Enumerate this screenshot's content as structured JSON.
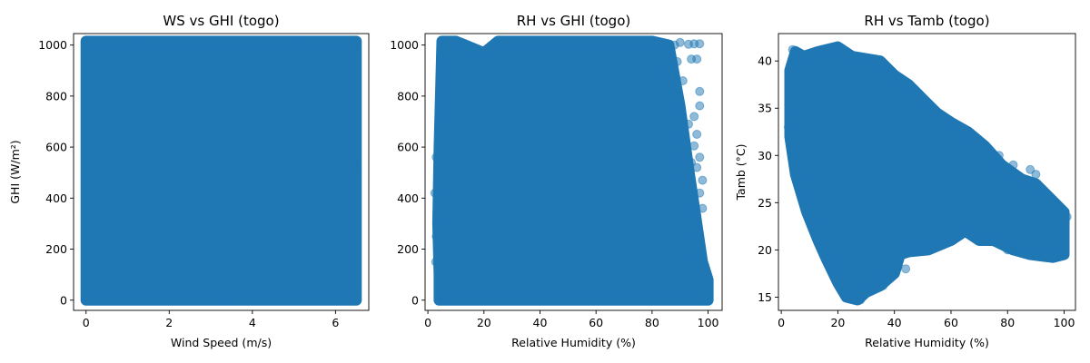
{
  "chart_data": [
    {
      "type": "scatter",
      "title": "WS vs GHI (togo)",
      "xlabel": "Wind Speed (m/s)",
      "ylabel": "GHI (W/m²)",
      "xlim": [
        -0.3,
        6.8
      ],
      "ylim": [
        -40,
        1045
      ],
      "xticks": [
        0,
        2,
        4,
        6
      ],
      "yticks": [
        0,
        200,
        400,
        600,
        800,
        1000
      ],
      "point_color": "#1f77b4",
      "point_alpha": 0.5,
      "dense_regions": [
        {
          "polygon": [
            [
              0,
              0
            ],
            [
              6.5,
              0
            ],
            [
              6.5,
              1015
            ],
            [
              0,
              1015
            ]
          ]
        }
      ],
      "points": [
        [
          0,
          1015
        ],
        [
          1.2,
          1012
        ],
        [
          2.5,
          1015
        ],
        [
          3.6,
          1013
        ],
        [
          5.1,
          1014
        ],
        [
          6.5,
          1015
        ],
        [
          6.5,
          0
        ],
        [
          0,
          0
        ],
        [
          3.2,
          0
        ],
        [
          6.5,
          520
        ],
        [
          0,
          480
        ]
      ]
    },
    {
      "type": "scatter",
      "title": "RH vs GHI (togo)",
      "xlabel": "Relative Humidity (%)",
      "ylabel": "",
      "xlim": [
        -1,
        105
      ],
      "ylim": [
        -40,
        1045
      ],
      "xticks": [
        0,
        20,
        40,
        60,
        80,
        100
      ],
      "yticks": [
        0,
        200,
        400,
        600,
        800,
        1000
      ],
      "point_color": "#1f77b4",
      "point_alpha": 0.5,
      "dense_regions": [
        {
          "polygon": [
            [
              4,
              0
            ],
            [
              100,
              0
            ],
            [
              100,
              80
            ],
            [
              98,
              150
            ],
            [
              96,
              300
            ],
            [
              93,
              520
            ],
            [
              90,
              760
            ],
            [
              86,
              1000
            ],
            [
              80,
              1015
            ],
            [
              25,
              1015
            ],
            [
              20,
              970
            ],
            [
              10,
              1015
            ],
            [
              5,
              1015
            ],
            [
              4,
              600
            ],
            [
              3.5,
              300
            ],
            [
              4,
              100
            ]
          ]
        }
      ],
      "points": [
        [
          97,
          1005
        ],
        [
          95,
          1005
        ],
        [
          93,
          1003
        ],
        [
          90,
          1010
        ],
        [
          88,
          1000
        ],
        [
          96,
          945
        ],
        [
          94,
          945
        ],
        [
          89,
          935
        ],
        [
          87,
          880
        ],
        [
          97,
          818
        ],
        [
          97,
          762
        ],
        [
          95,
          720
        ],
        [
          93,
          690
        ],
        [
          96,
          650
        ],
        [
          95,
          605
        ],
        [
          97,
          560
        ],
        [
          96,
          520
        ],
        [
          98,
          470
        ],
        [
          97,
          420
        ],
        [
          98,
          360
        ],
        [
          96,
          330
        ],
        [
          91,
          860
        ],
        [
          89,
          800
        ],
        [
          92,
          620
        ],
        [
          94,
          540
        ],
        [
          90,
          480
        ],
        [
          3,
          560
        ],
        [
          2.5,
          420
        ],
        [
          3,
          250
        ],
        [
          2.8,
          150
        ],
        [
          5,
          20
        ],
        [
          6,
          5
        ]
      ]
    },
    {
      "type": "scatter",
      "title": "RH vs Tamb (togo)",
      "xlabel": "Relative Humidity (%)",
      "ylabel": "Tamb (°C)",
      "xlim": [
        -1,
        104
      ],
      "ylim": [
        13.6,
        42.9
      ],
      "xticks": [
        0,
        20,
        40,
        60,
        80,
        100
      ],
      "yticks": [
        15,
        20,
        25,
        30,
        35,
        40
      ],
      "point_color": "#1f77b4",
      "point_alpha": 0.5,
      "dense_regions": [
        {
          "polygon": [
            [
              3,
              39
            ],
            [
              5,
              41
            ],
            [
              8,
              40.5
            ],
            [
              13,
              41
            ],
            [
              20,
              41.5
            ],
            [
              25,
              40.5
            ],
            [
              35,
              40
            ],
            [
              40,
              38.5
            ],
            [
              45,
              37.5
            ],
            [
              50,
              36
            ],
            [
              55,
              34.5
            ],
            [
              60,
              33.5
            ],
            [
              66,
              32.5
            ],
            [
              72,
              31
            ],
            [
              78,
              29
            ],
            [
              85,
              27.5
            ],
            [
              90,
              27
            ],
            [
              95,
              25.5
            ],
            [
              100,
              24
            ],
            [
              100,
              19.5
            ],
            [
              96,
              19.2
            ],
            [
              88,
              19.5
            ],
            [
              82,
              20
            ],
            [
              75,
              21
            ],
            [
              70,
              21
            ],
            [
              65,
              22
            ],
            [
              60,
              21
            ],
            [
              52,
              20
            ],
            [
              45,
              19.8
            ],
            [
              42,
              19.5
            ],
            [
              40,
              17.5
            ],
            [
              35,
              16.2
            ],
            [
              30,
              15.5
            ],
            [
              27,
              14.7
            ],
            [
              23,
              15
            ],
            [
              20,
              16.5
            ],
            [
              16,
              19
            ],
            [
              13,
              21
            ],
            [
              9,
              24
            ],
            [
              5,
              28
            ],
            [
              3,
              32
            ]
          ]
        }
      ],
      "points": [
        [
          4,
          41.2
        ],
        [
          13,
          41
        ],
        [
          20,
          41.6
        ],
        [
          52,
          35.5
        ],
        [
          60,
          33
        ],
        [
          65,
          32
        ],
        [
          70,
          31.2
        ],
        [
          77,
          30
        ],
        [
          82,
          29
        ],
        [
          88,
          28.5
        ],
        [
          90,
          28
        ],
        [
          26,
          14.8
        ],
        [
          28,
          14.7
        ],
        [
          25,
          15.2
        ],
        [
          36,
          16.2
        ],
        [
          38,
          17.5
        ],
        [
          44,
          18
        ],
        [
          47,
          20
        ],
        [
          55,
          20.7
        ],
        [
          70,
          21
        ],
        [
          80,
          20
        ],
        [
          84,
          20
        ],
        [
          90,
          19.5
        ],
        [
          97,
          19.2
        ],
        [
          100,
          22
        ],
        [
          101,
          23.5
        ],
        [
          2.5,
          33
        ],
        [
          3,
          35
        ]
      ]
    }
  ]
}
